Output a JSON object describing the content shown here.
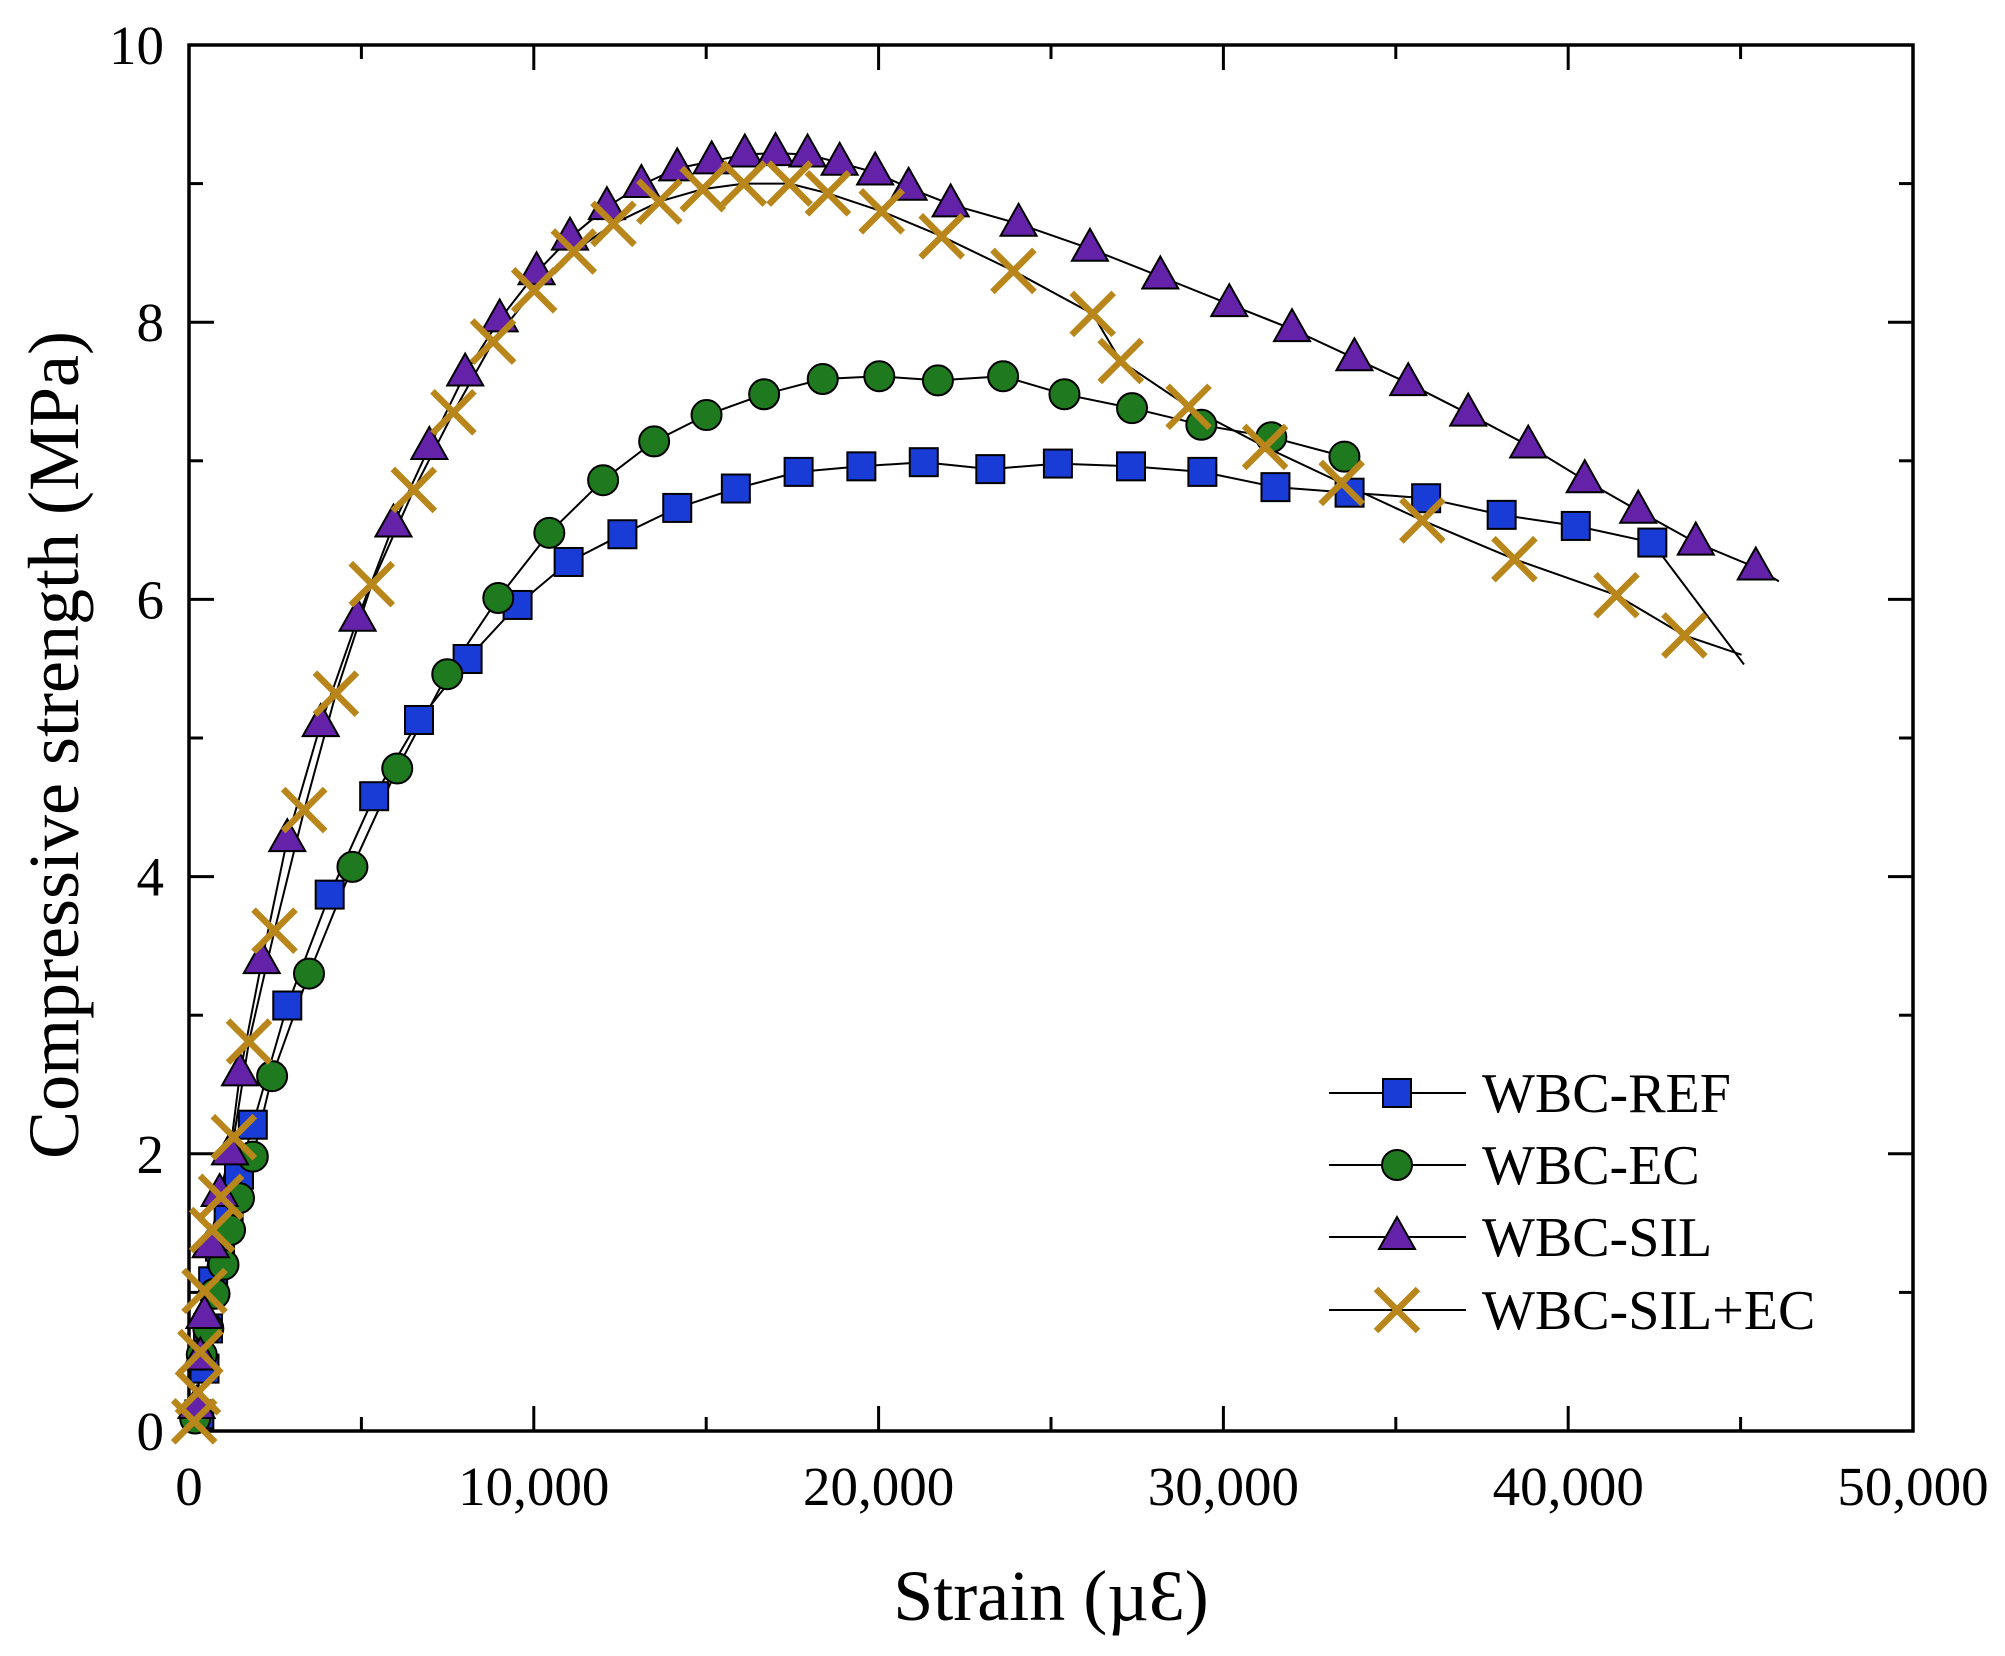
{
  "chart_data": {
    "type": "line",
    "xlabel": "Strain (µƐ)",
    "ylabel": "Compressive strength (MPa)",
    "xlim": [
      0,
      50000
    ],
    "ylim": [
      0,
      10
    ],
    "x_ticks": [
      0,
      10000,
      20000,
      30000,
      40000,
      50000
    ],
    "x_tick_labels": [
      "0",
      "10,000",
      "20,000",
      "30,000",
      "40,000",
      "50,000"
    ],
    "x_minor_ticks": [
      5000,
      15000,
      25000,
      35000,
      45000
    ],
    "y_ticks": [
      0,
      2,
      4,
      6,
      8,
      10
    ],
    "y_tick_labels": [
      "0",
      "2",
      "4",
      "6",
      "8",
      "10"
    ],
    "y_minor_ticks": [
      1,
      3,
      5,
      7,
      9
    ],
    "grid": false,
    "legend": "bottom-right",
    "series": [
      {
        "name": "WBC-REF",
        "marker": "square",
        "color": "#1a3cd6",
        "points": [
          [
            300,
            0.12
          ],
          [
            450,
            0.45
          ],
          [
            550,
            0.74
          ],
          [
            700,
            1.08
          ],
          [
            900,
            1.33
          ],
          [
            1150,
            1.6
          ],
          [
            1450,
            1.85
          ],
          [
            1850,
            2.21
          ],
          [
            2850,
            3.07
          ],
          [
            4080,
            3.87
          ],
          [
            5370,
            4.58
          ],
          [
            6670,
            5.13
          ],
          [
            8080,
            5.57
          ],
          [
            9530,
            5.96
          ],
          [
            11010,
            6.27
          ],
          [
            12570,
            6.47
          ],
          [
            14160,
            6.66
          ],
          [
            15860,
            6.8
          ],
          [
            17680,
            6.92
          ],
          [
            19500,
            6.96
          ],
          [
            21310,
            6.99
          ],
          [
            23240,
            6.94
          ],
          [
            25200,
            6.98
          ],
          [
            27320,
            6.96
          ],
          [
            29390,
            6.92
          ],
          [
            31510,
            6.81
          ],
          [
            33660,
            6.77
          ],
          [
            35880,
            6.73
          ],
          [
            38070,
            6.61
          ],
          [
            40220,
            6.53
          ],
          [
            42440,
            6.41
          ]
        ],
        "line_end": [
          45100,
          5.53
        ]
      },
      {
        "name": "WBC-EC",
        "marker": "circle",
        "color": "#1f7a1f",
        "points": [
          [
            180,
            0.09
          ],
          [
            370,
            0.55
          ],
          [
            560,
            0.74
          ],
          [
            740,
            0.99
          ],
          [
            1000,
            1.2
          ],
          [
            1190,
            1.45
          ],
          [
            1450,
            1.68
          ],
          [
            1850,
            1.98
          ],
          [
            2410,
            2.56
          ],
          [
            3480,
            3.3
          ],
          [
            4740,
            4.07
          ],
          [
            6040,
            4.78
          ],
          [
            7490,
            5.46
          ],
          [
            8970,
            6.01
          ],
          [
            10450,
            6.48
          ],
          [
            12010,
            6.86
          ],
          [
            13490,
            7.14
          ],
          [
            15010,
            7.33
          ],
          [
            16680,
            7.48
          ],
          [
            18380,
            7.59
          ],
          [
            20020,
            7.61
          ],
          [
            21720,
            7.58
          ],
          [
            23610,
            7.61
          ],
          [
            25390,
            7.48
          ],
          [
            27350,
            7.38
          ],
          [
            29360,
            7.26
          ],
          [
            31390,
            7.17
          ],
          [
            33510,
            7.03
          ]
        ]
      },
      {
        "name": "WBC-SIL",
        "marker": "triangle",
        "color": "#6422a8",
        "points": [
          [
            220,
            0.18
          ],
          [
            330,
            0.53
          ],
          [
            450,
            0.83
          ],
          [
            630,
            1.34
          ],
          [
            890,
            1.71
          ],
          [
            1190,
            2.01
          ],
          [
            1480,
            2.58
          ],
          [
            2110,
            3.39
          ],
          [
            2850,
            4.27
          ],
          [
            3820,
            5.1
          ],
          [
            4890,
            5.86
          ],
          [
            5930,
            6.54
          ],
          [
            6970,
            7.1
          ],
          [
            8010,
            7.63
          ],
          [
            9010,
            8.02
          ],
          [
            10080,
            8.36
          ],
          [
            11050,
            8.61
          ],
          [
            12120,
            8.83
          ],
          [
            13120,
            8.99
          ],
          [
            14160,
            9.11
          ],
          [
            15160,
            9.16
          ],
          [
            16120,
            9.21
          ],
          [
            17010,
            9.22
          ],
          [
            17940,
            9.21
          ],
          [
            18870,
            9.15
          ],
          [
            19900,
            9.08
          ],
          [
            20870,
            8.97
          ],
          [
            22090,
            8.85
          ],
          [
            24060,
            8.71
          ],
          [
            26130,
            8.53
          ],
          [
            28170,
            8.33
          ],
          [
            30170,
            8.13
          ],
          [
            31990,
            7.95
          ],
          [
            33800,
            7.74
          ],
          [
            35360,
            7.56
          ],
          [
            37100,
            7.34
          ],
          [
            38840,
            7.11
          ],
          [
            40480,
            6.86
          ],
          [
            42030,
            6.64
          ],
          [
            43700,
            6.41
          ],
          [
            45440,
            6.23
          ]
        ],
        "line_end": [
          46110,
          6.13
        ]
      },
      {
        "name": "WBC-SIL+EC",
        "marker": "x",
        "color": "#b8861b",
        "points": [
          [
            150,
            0.07
          ],
          [
            260,
            0.28
          ],
          [
            330,
            0.57
          ],
          [
            450,
            1.01
          ],
          [
            670,
            1.45
          ],
          [
            930,
            1.69
          ],
          [
            1300,
            2.12
          ],
          [
            1740,
            2.81
          ],
          [
            2480,
            3.61
          ],
          [
            3340,
            4.48
          ],
          [
            4260,
            5.32
          ],
          [
            5300,
            6.11
          ],
          [
            6520,
            6.79
          ],
          [
            7670,
            7.35
          ],
          [
            8820,
            7.86
          ],
          [
            10010,
            8.23
          ],
          [
            11160,
            8.51
          ],
          [
            12310,
            8.71
          ],
          [
            13640,
            8.87
          ],
          [
            14900,
            8.96
          ],
          [
            16090,
            9.0
          ],
          [
            17420,
            9.0
          ],
          [
            18530,
            8.93
          ],
          [
            20090,
            8.8
          ],
          [
            21830,
            8.62
          ],
          [
            23910,
            8.37
          ],
          [
            26210,
            8.06
          ],
          [
            27020,
            7.72
          ],
          [
            28990,
            7.39
          ],
          [
            31210,
            7.1
          ],
          [
            33430,
            6.84
          ],
          [
            35770,
            6.57
          ],
          [
            38440,
            6.29
          ],
          [
            41400,
            6.03
          ],
          [
            43370,
            5.74
          ]
        ],
        "line_end": [
          45030,
          5.6
        ]
      }
    ]
  }
}
